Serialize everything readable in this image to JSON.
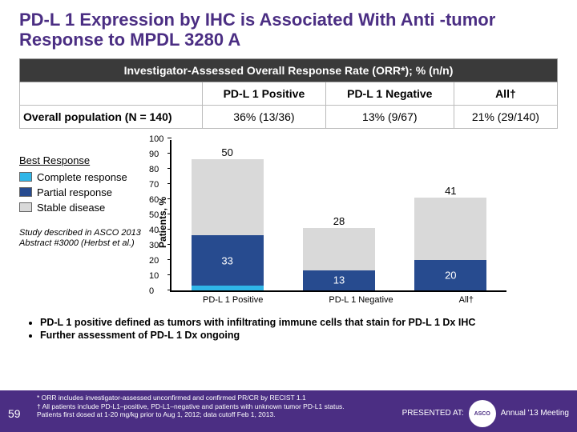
{
  "title": "PD-L 1 Expression by IHC is Associated With Anti -tumor Response to MPDL 3280 A",
  "table": {
    "header": "Investigator-Assessed Overall Response Rate (ORR*); % (n/n)",
    "columns": [
      "PD-L 1 Positive",
      "PD-L 1 Negative",
      "All†"
    ],
    "row_label": "Overall population (N = 140)",
    "row_values": [
      "36% (13/36)",
      "13% (9/67)",
      "21% (29/140)"
    ]
  },
  "chart": {
    "ylabel": "Patients, %",
    "ylim": [
      0,
      100
    ],
    "ytick_step": 10,
    "categories": [
      "PD-L 1 Positive",
      "PD-L 1 Negative",
      "All†"
    ],
    "legend_title": "Best Response",
    "series": [
      {
        "name": "Complete response",
        "color": "#2fb6e8"
      },
      {
        "name": "Partial response",
        "color": "#274b8f"
      },
      {
        "name": "Stable disease",
        "color": "#d9d9d9"
      }
    ],
    "data": [
      {
        "complete": 3,
        "partial": 33,
        "stable": 50
      },
      {
        "complete": 0,
        "partial": 13,
        "stable": 28
      },
      {
        "complete": 0,
        "partial": 20,
        "stable": 41
      }
    ],
    "labels": [
      {
        "stable": "50",
        "partial": "33"
      },
      {
        "stable": "28",
        "partial": "13"
      },
      {
        "stable": "41",
        "partial": "20"
      }
    ],
    "study_note": "Study described in ASCO 2013 Abstract #3000 (Herbst et al.)"
  },
  "bullets": [
    "PD-L 1 positive defined as tumors with infiltrating immune cells that stain for PD-L 1 Dx IHC",
    "Further assessment of PD-L 1 Dx ongoing"
  ],
  "footnotes": [
    "* ORR includes investigator-assessed unconfirmed and confirmed PR/CR by RECIST 1.1",
    "† All patients include PD-L1–positive, PD-L1–negative and patients with unknown tumor PD-L1 status.",
    "Patients first dosed at 1-20 mg/kg prior to Aug 1, 2012; data cutoff Feb 1, 2013."
  ],
  "slide_number": "59",
  "footer_right": {
    "presented": "PRESENTED AT:",
    "logo_top": "ASCO",
    "logo_bot": "Annual '13 Meeting"
  }
}
